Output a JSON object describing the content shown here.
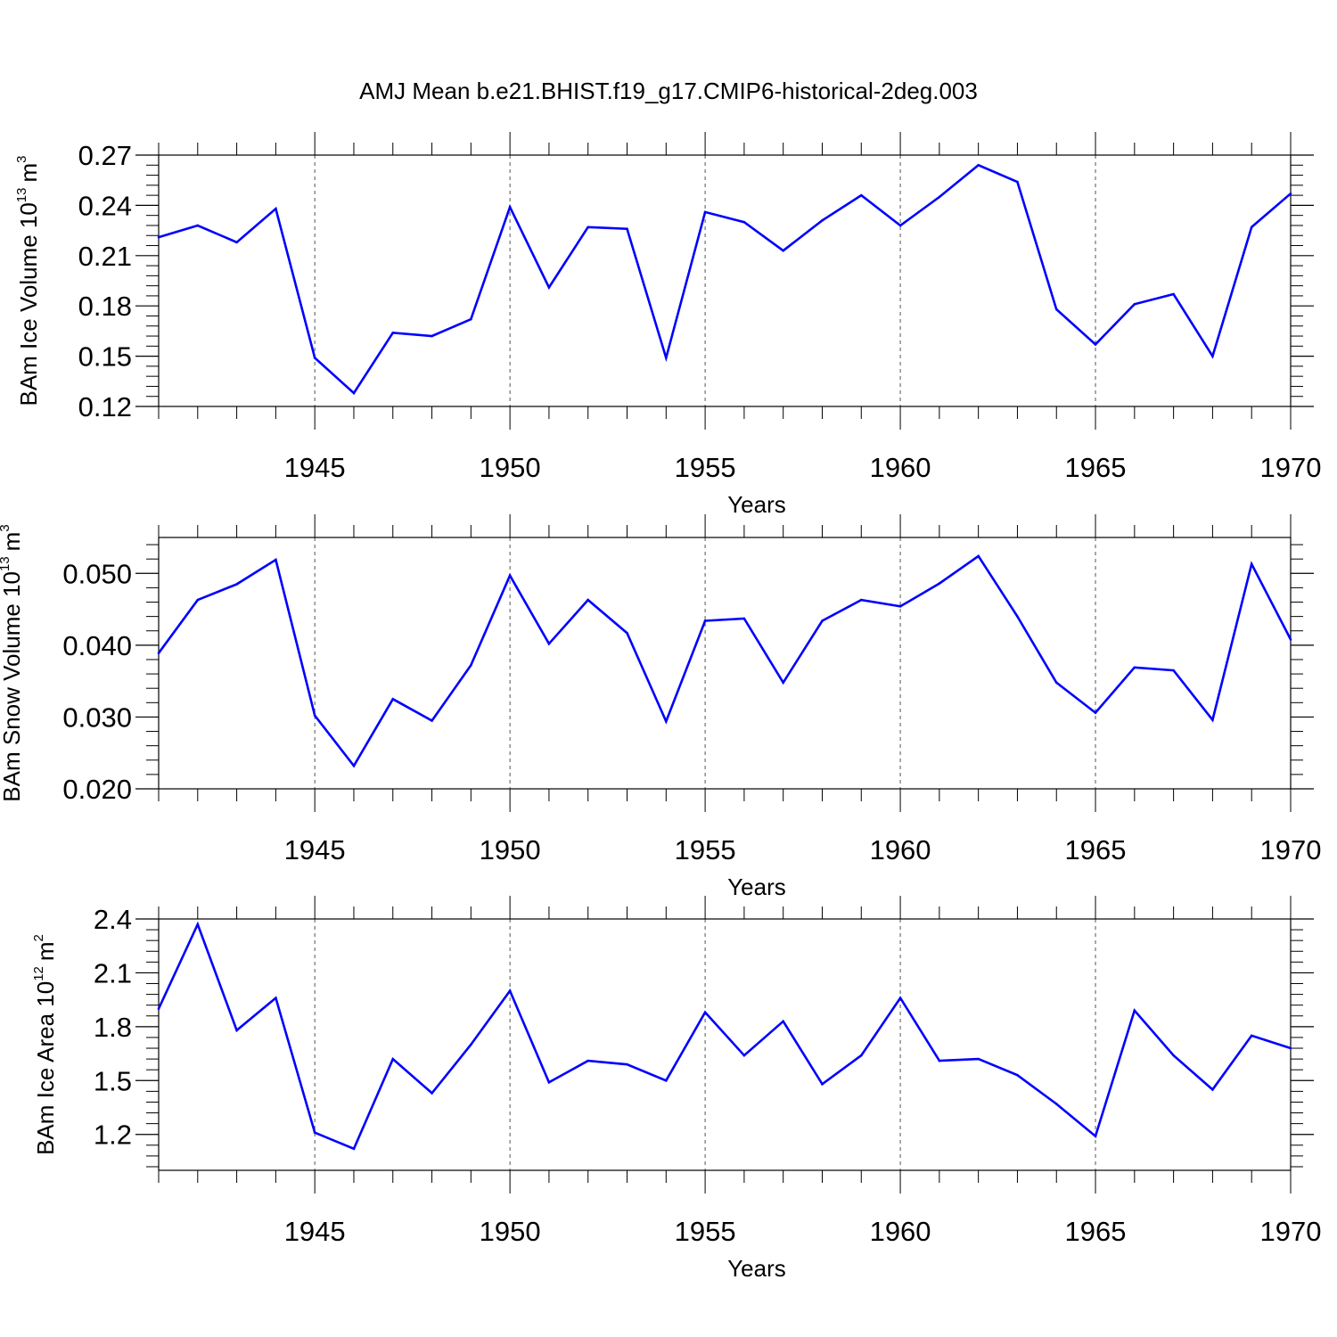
{
  "figure": {
    "title": "AMJ Mean b.e21.BHIST.f19_g17.CMIP6-historical-2deg.003",
    "series_color": "#0000ff"
  },
  "chart_data": [
    {
      "type": "line",
      "ylabel": "BAm Ice Volume 10",
      "ylabel_exp": "13",
      "ylabel_unit": "m",
      "ylabel_unit_exp": "3",
      "xlabel": "Years",
      "xlim": [
        1941,
        1970
      ],
      "ylim": [
        0.12,
        0.27
      ],
      "yticks": [
        0.12,
        0.15,
        0.18,
        0.21,
        0.24,
        0.27
      ],
      "ytick_labels": [
        "0.12",
        "0.15",
        "0.18",
        "0.21",
        "0.24",
        "0.27"
      ],
      "yminor": [
        0.126,
        0.132,
        0.138,
        0.144,
        0.156,
        0.162,
        0.168,
        0.174,
        0.186,
        0.192,
        0.198,
        0.204,
        0.216,
        0.222,
        0.228,
        0.234,
        0.246,
        0.252,
        0.258,
        0.264
      ],
      "xticks": [
        1945,
        1950,
        1955,
        1960,
        1965,
        1970
      ],
      "xtick_labels": [
        "1945",
        "1950",
        "1955",
        "1960",
        "1965",
        "1970"
      ],
      "x": [
        1941,
        1942,
        1943,
        1944,
        1945,
        1946,
        1947,
        1948,
        1949,
        1950,
        1951,
        1952,
        1953,
        1954,
        1955,
        1956,
        1957,
        1958,
        1959,
        1960,
        1961,
        1962,
        1963,
        1964,
        1965,
        1966,
        1967,
        1968,
        1969,
        1970
      ],
      "values": [
        0.221,
        0.228,
        0.218,
        0.238,
        0.149,
        0.128,
        0.164,
        0.162,
        0.172,
        0.239,
        0.191,
        0.227,
        0.226,
        0.149,
        0.236,
        0.23,
        0.213,
        0.231,
        0.246,
        0.228,
        0.245,
        0.264,
        0.254,
        0.178,
        0.157,
        0.181,
        0.187,
        0.15,
        0.227,
        0.247
      ]
    },
    {
      "type": "line",
      "ylabel": "BAm Snow Volume 10",
      "ylabel_exp": "13",
      "ylabel_unit": "m",
      "ylabel_unit_exp": "3",
      "xlabel": "Years",
      "xlim": [
        1941,
        1970
      ],
      "ylim": [
        0.02,
        0.055
      ],
      "yticks": [
        0.02,
        0.03,
        0.04,
        0.05
      ],
      "ytick_labels": [
        "0.020",
        "0.030",
        "0.040",
        "0.050"
      ],
      "yminor": [
        0.022,
        0.024,
        0.026,
        0.028,
        0.032,
        0.034,
        0.036,
        0.038,
        0.042,
        0.044,
        0.046,
        0.048,
        0.052,
        0.054
      ],
      "xticks": [
        1945,
        1950,
        1955,
        1960,
        1965,
        1970
      ],
      "xtick_labels": [
        "1945",
        "1950",
        "1955",
        "1960",
        "1965",
        "1970"
      ],
      "x": [
        1941,
        1942,
        1943,
        1944,
        1945,
        1946,
        1947,
        1948,
        1949,
        1950,
        1951,
        1952,
        1953,
        1954,
        1955,
        1956,
        1957,
        1958,
        1959,
        1960,
        1961,
        1962,
        1963,
        1964,
        1965,
        1966,
        1967,
        1968,
        1969,
        1970
      ],
      "values": [
        0.0389,
        0.0463,
        0.0485,
        0.0519,
        0.0302,
        0.0232,
        0.0325,
        0.0295,
        0.0372,
        0.0497,
        0.0402,
        0.0463,
        0.0417,
        0.0294,
        0.0434,
        0.0437,
        0.0348,
        0.0434,
        0.0463,
        0.0454,
        0.0486,
        0.0524,
        0.044,
        0.0348,
        0.0306,
        0.0369,
        0.0365,
        0.0296,
        0.0513,
        0.0408
      ]
    },
    {
      "type": "line",
      "ylabel": "BAm Ice Area 10",
      "ylabel_exp": "12",
      "ylabel_unit": "m",
      "ylabel_unit_exp": "2",
      "xlabel": "Years",
      "xlim": [
        1941,
        1970
      ],
      "ylim": [
        1.0,
        2.4
      ],
      "yticks": [
        1.2,
        1.5,
        1.8,
        2.1,
        2.4
      ],
      "ytick_labels": [
        "1.2",
        "1.5",
        "1.8",
        "2.1",
        "2.4"
      ],
      "yminor": [
        1.02,
        1.08,
        1.14,
        1.26,
        1.32,
        1.38,
        1.44,
        1.56,
        1.62,
        1.68,
        1.74,
        1.86,
        1.92,
        1.98,
        2.04,
        2.16,
        2.22,
        2.28,
        2.34
      ],
      "xticks": [
        1945,
        1950,
        1955,
        1960,
        1965,
        1970
      ],
      "xtick_labels": [
        "1945",
        "1950",
        "1955",
        "1960",
        "1965",
        "1970"
      ],
      "x": [
        1941,
        1942,
        1943,
        1944,
        1945,
        1946,
        1947,
        1948,
        1949,
        1950,
        1951,
        1952,
        1953,
        1954,
        1955,
        1956,
        1957,
        1958,
        1959,
        1960,
        1961,
        1962,
        1963,
        1964,
        1965,
        1966,
        1967,
        1968,
        1969,
        1970
      ],
      "values": [
        1.9,
        2.37,
        1.78,
        1.96,
        1.21,
        1.12,
        1.62,
        1.43,
        1.7,
        2.0,
        1.49,
        1.61,
        1.59,
        1.5,
        1.88,
        1.64,
        1.83,
        1.48,
        1.64,
        1.96,
        1.61,
        1.62,
        1.53,
        1.37,
        1.19,
        1.89,
        1.64,
        1.45,
        1.75,
        1.68
      ]
    }
  ]
}
